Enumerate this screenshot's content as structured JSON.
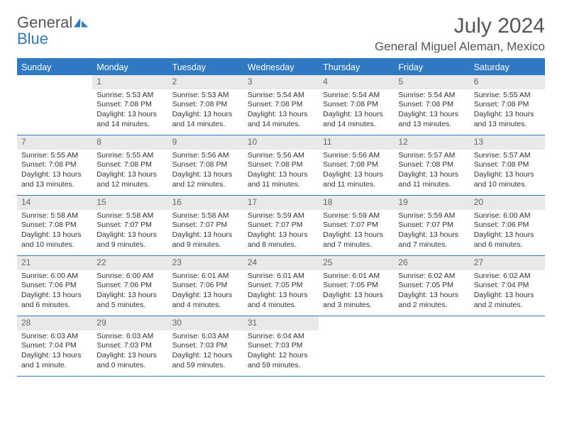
{
  "logo": {
    "word1": "General",
    "word2": "Blue"
  },
  "title": "July 2024",
  "location": "General Miguel Aleman, Mexico",
  "colors": {
    "accent": "#2f78c2",
    "daynum_bg": "#e9e9e9",
    "text": "#333333",
    "muted": "#666666"
  },
  "weekdays": [
    "Sunday",
    "Monday",
    "Tuesday",
    "Wednesday",
    "Thursday",
    "Friday",
    "Saturday"
  ],
  "weeks": [
    [
      null,
      {
        "n": "1",
        "sr": "Sunrise: 5:53 AM",
        "ss": "Sunset: 7:08 PM",
        "d1": "Daylight: 13 hours",
        "d2": "and 14 minutes."
      },
      {
        "n": "2",
        "sr": "Sunrise: 5:53 AM",
        "ss": "Sunset: 7:08 PM",
        "d1": "Daylight: 13 hours",
        "d2": "and 14 minutes."
      },
      {
        "n": "3",
        "sr": "Sunrise: 5:54 AM",
        "ss": "Sunset: 7:08 PM",
        "d1": "Daylight: 13 hours",
        "d2": "and 14 minutes."
      },
      {
        "n": "4",
        "sr": "Sunrise: 5:54 AM",
        "ss": "Sunset: 7:08 PM",
        "d1": "Daylight: 13 hours",
        "d2": "and 14 minutes."
      },
      {
        "n": "5",
        "sr": "Sunrise: 5:54 AM",
        "ss": "Sunset: 7:08 PM",
        "d1": "Daylight: 13 hours",
        "d2": "and 13 minutes."
      },
      {
        "n": "6",
        "sr": "Sunrise: 5:55 AM",
        "ss": "Sunset: 7:08 PM",
        "d1": "Daylight: 13 hours",
        "d2": "and 13 minutes."
      }
    ],
    [
      {
        "n": "7",
        "sr": "Sunrise: 5:55 AM",
        "ss": "Sunset: 7:08 PM",
        "d1": "Daylight: 13 hours",
        "d2": "and 13 minutes."
      },
      {
        "n": "8",
        "sr": "Sunrise: 5:55 AM",
        "ss": "Sunset: 7:08 PM",
        "d1": "Daylight: 13 hours",
        "d2": "and 12 minutes."
      },
      {
        "n": "9",
        "sr": "Sunrise: 5:56 AM",
        "ss": "Sunset: 7:08 PM",
        "d1": "Daylight: 13 hours",
        "d2": "and 12 minutes."
      },
      {
        "n": "10",
        "sr": "Sunrise: 5:56 AM",
        "ss": "Sunset: 7:08 PM",
        "d1": "Daylight: 13 hours",
        "d2": "and 11 minutes."
      },
      {
        "n": "11",
        "sr": "Sunrise: 5:56 AM",
        "ss": "Sunset: 7:08 PM",
        "d1": "Daylight: 13 hours",
        "d2": "and 11 minutes."
      },
      {
        "n": "12",
        "sr": "Sunrise: 5:57 AM",
        "ss": "Sunset: 7:08 PM",
        "d1": "Daylight: 13 hours",
        "d2": "and 11 minutes."
      },
      {
        "n": "13",
        "sr": "Sunrise: 5:57 AM",
        "ss": "Sunset: 7:08 PM",
        "d1": "Daylight: 13 hours",
        "d2": "and 10 minutes."
      }
    ],
    [
      {
        "n": "14",
        "sr": "Sunrise: 5:58 AM",
        "ss": "Sunset: 7:08 PM",
        "d1": "Daylight: 13 hours",
        "d2": "and 10 minutes."
      },
      {
        "n": "15",
        "sr": "Sunrise: 5:58 AM",
        "ss": "Sunset: 7:07 PM",
        "d1": "Daylight: 13 hours",
        "d2": "and 9 minutes."
      },
      {
        "n": "16",
        "sr": "Sunrise: 5:58 AM",
        "ss": "Sunset: 7:07 PM",
        "d1": "Daylight: 13 hours",
        "d2": "and 9 minutes."
      },
      {
        "n": "17",
        "sr": "Sunrise: 5:59 AM",
        "ss": "Sunset: 7:07 PM",
        "d1": "Daylight: 13 hours",
        "d2": "and 8 minutes."
      },
      {
        "n": "18",
        "sr": "Sunrise: 5:59 AM",
        "ss": "Sunset: 7:07 PM",
        "d1": "Daylight: 13 hours",
        "d2": "and 7 minutes."
      },
      {
        "n": "19",
        "sr": "Sunrise: 5:59 AM",
        "ss": "Sunset: 7:07 PM",
        "d1": "Daylight: 13 hours",
        "d2": "and 7 minutes."
      },
      {
        "n": "20",
        "sr": "Sunrise: 6:00 AM",
        "ss": "Sunset: 7:06 PM",
        "d1": "Daylight: 13 hours",
        "d2": "and 6 minutes."
      }
    ],
    [
      {
        "n": "21",
        "sr": "Sunrise: 6:00 AM",
        "ss": "Sunset: 7:06 PM",
        "d1": "Daylight: 13 hours",
        "d2": "and 6 minutes."
      },
      {
        "n": "22",
        "sr": "Sunrise: 6:00 AM",
        "ss": "Sunset: 7:06 PM",
        "d1": "Daylight: 13 hours",
        "d2": "and 5 minutes."
      },
      {
        "n": "23",
        "sr": "Sunrise: 6:01 AM",
        "ss": "Sunset: 7:06 PM",
        "d1": "Daylight: 13 hours",
        "d2": "and 4 minutes."
      },
      {
        "n": "24",
        "sr": "Sunrise: 6:01 AM",
        "ss": "Sunset: 7:05 PM",
        "d1": "Daylight: 13 hours",
        "d2": "and 4 minutes."
      },
      {
        "n": "25",
        "sr": "Sunrise: 6:01 AM",
        "ss": "Sunset: 7:05 PM",
        "d1": "Daylight: 13 hours",
        "d2": "and 3 minutes."
      },
      {
        "n": "26",
        "sr": "Sunrise: 6:02 AM",
        "ss": "Sunset: 7:05 PM",
        "d1": "Daylight: 13 hours",
        "d2": "and 2 minutes."
      },
      {
        "n": "27",
        "sr": "Sunrise: 6:02 AM",
        "ss": "Sunset: 7:04 PM",
        "d1": "Daylight: 13 hours",
        "d2": "and 2 minutes."
      }
    ],
    [
      {
        "n": "28",
        "sr": "Sunrise: 6:03 AM",
        "ss": "Sunset: 7:04 PM",
        "d1": "Daylight: 13 hours",
        "d2": "and 1 minute."
      },
      {
        "n": "29",
        "sr": "Sunrise: 6:03 AM",
        "ss": "Sunset: 7:03 PM",
        "d1": "Daylight: 13 hours",
        "d2": "and 0 minutes."
      },
      {
        "n": "30",
        "sr": "Sunrise: 6:03 AM",
        "ss": "Sunset: 7:03 PM",
        "d1": "Daylight: 12 hours",
        "d2": "and 59 minutes."
      },
      {
        "n": "31",
        "sr": "Sunrise: 6:04 AM",
        "ss": "Sunset: 7:03 PM",
        "d1": "Daylight: 12 hours",
        "d2": "and 59 minutes."
      },
      null,
      null,
      null
    ]
  ]
}
